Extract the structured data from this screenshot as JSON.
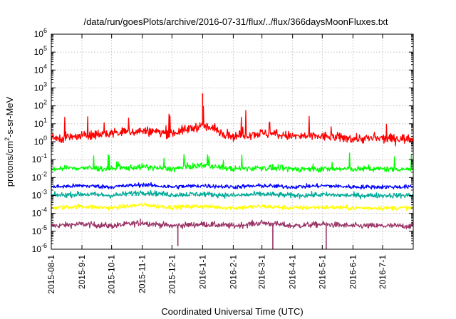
{
  "chart_data": {
    "type": "line",
    "title": "/data/run/goesPlots/archive/2016-07-31/flux/../flux/366daysMoonFluxes.txt",
    "xlabel": "Coordinated Universal Time (UTC)",
    "ylabel_parts": {
      "pre": "protons/cm",
      "sup": "2",
      "post": "-s-sr-MeV"
    },
    "y_scale": "log",
    "ylim": [
      1e-06,
      1000000.0
    ],
    "y_ticks": [
      {
        "base": "10",
        "exp": "-6",
        "value": 1e-06
      },
      {
        "base": "10",
        "exp": "-5",
        "value": 1e-05
      },
      {
        "base": "10",
        "exp": "-4",
        "value": 0.0001
      },
      {
        "base": "10",
        "exp": "-3",
        "value": 0.001
      },
      {
        "base": "10",
        "exp": "-2",
        "value": 0.01
      },
      {
        "base": "10",
        "exp": "-1",
        "value": 0.1
      },
      {
        "base": "10",
        "exp": "0",
        "value": 1
      },
      {
        "base": "10",
        "exp": "1",
        "value": 10
      },
      {
        "base": "10",
        "exp": "2",
        "value": 100
      },
      {
        "base": "10",
        "exp": "3",
        "value": 1000
      },
      {
        "base": "10",
        "exp": "4",
        "value": 10000
      },
      {
        "base": "10",
        "exp": "5",
        "value": 100000
      },
      {
        "base": "10",
        "exp": "6",
        "value": 1000000
      }
    ],
    "xlim": [
      "2015-08-01",
      "2016-08-01"
    ],
    "x_ticks": [
      "2015-08-1",
      "2015-9-1",
      "2015-10-1",
      "2015-11-1",
      "2015-12-1",
      "2016-1-1",
      "2016-2-1",
      "2016-3-1",
      "2016-4-1",
      "2016-5-1",
      "2016-6-1",
      "2016-7-1"
    ],
    "x_tick_dates": [
      "2015-08-01",
      "2015-09-01",
      "2015-10-01",
      "2015-11-01",
      "2015-12-01",
      "2016-01-01",
      "2016-02-01",
      "2016-03-01",
      "2016-04-01",
      "2016-05-01",
      "2016-06-01",
      "2016-07-01"
    ],
    "grid": true,
    "legend": "none",
    "series": [
      {
        "color": "#993366",
        "x": [
          "2015-08-01",
          "2015-09-01",
          "2015-10-01",
          "2015-11-01",
          "2015-12-01",
          "2016-01-01",
          "2016-02-01",
          "2016-03-01",
          "2016-04-01",
          "2016-05-01",
          "2016-06-01",
          "2016-07-01",
          "2016-08-01"
        ],
        "y": [
          2e-05,
          2.5e-05,
          2e-05,
          3e-05,
          2e-05,
          2.5e-05,
          2e-05,
          3e-05,
          2e-05,
          2.5e-05,
          2e-05,
          2e-05,
          2e-05
        ]
      },
      {
        "color": "#ffff00",
        "x": [
          "2015-08-01",
          "2015-09-01",
          "2015-10-01",
          "2015-11-01",
          "2015-12-01",
          "2016-01-01",
          "2016-02-01",
          "2016-03-01",
          "2016-04-01",
          "2016-05-01",
          "2016-06-01",
          "2016-07-01",
          "2016-08-01"
        ],
        "y": [
          0.0002,
          0.00025,
          0.0002,
          0.0003,
          0.00022,
          0.00025,
          0.0002,
          0.00025,
          0.0002,
          0.00022,
          0.0002,
          0.0002,
          0.0002
        ]
      },
      {
        "color": "#00aa99",
        "x": [
          "2015-08-01",
          "2015-09-01",
          "2015-10-01",
          "2015-11-01",
          "2015-12-01",
          "2016-01-01",
          "2016-02-01",
          "2016-03-01",
          "2016-04-01",
          "2016-05-01",
          "2016-06-01",
          "2016-07-01",
          "2016-08-01"
        ],
        "y": [
          0.001,
          0.0012,
          0.001,
          0.0015,
          0.0011,
          0.0012,
          0.001,
          0.0012,
          0.001,
          0.0011,
          0.001,
          0.001,
          0.001
        ]
      },
      {
        "color": "#0000ff",
        "x": [
          "2015-08-01",
          "2015-09-01",
          "2015-10-01",
          "2015-11-01",
          "2015-12-01",
          "2016-01-01",
          "2016-02-01",
          "2016-03-01",
          "2016-04-01",
          "2016-05-01",
          "2016-06-01",
          "2016-07-01",
          "2016-08-01"
        ],
        "y": [
          0.003,
          0.0035,
          0.003,
          0.004,
          0.003,
          0.0035,
          0.003,
          0.0035,
          0.003,
          0.0035,
          0.003,
          0.003,
          0.003
        ]
      },
      {
        "color": "#00ff00",
        "x": [
          "2015-08-01",
          "2015-09-01",
          "2015-10-01",
          "2015-11-01",
          "2015-12-01",
          "2016-01-01",
          "2016-02-01",
          "2016-03-01",
          "2016-04-01",
          "2016-05-01",
          "2016-06-01",
          "2016-07-01",
          "2016-08-01"
        ],
        "y": [
          0.03,
          0.035,
          0.03,
          0.04,
          0.03,
          0.05,
          0.03,
          0.035,
          0.03,
          0.03,
          0.03,
          0.03,
          0.03
        ]
      },
      {
        "color": "#ff0000",
        "x": [
          "2015-08-01",
          "2015-09-01",
          "2015-10-01",
          "2015-11-01",
          "2015-12-01",
          "2016-01-01",
          "2016-02-01",
          "2016-03-01",
          "2016-04-01",
          "2016-05-01",
          "2016-06-01",
          "2016-07-01",
          "2016-08-01"
        ],
        "y": [
          1.5,
          2,
          3,
          4,
          3,
          8,
          2,
          3,
          2,
          2,
          1.5,
          1.5,
          1.5
        ]
      }
    ],
    "annotations": [
      {
        "series_color": "#ff0000",
        "x": "2016-01-01",
        "y": 500
      },
      {
        "series_color": "#993366",
        "x": "2015-12-07",
        "y": 1.5e-06
      },
      {
        "series_color": "#993366",
        "x": "2016-03-12",
        "y": 1e-06
      },
      {
        "series_color": "#993366",
        "x": "2016-05-05",
        "y": 1e-06
      },
      {
        "series_color": "#993366",
        "x": "2015-10-30",
        "y": 5e-05
      }
    ]
  }
}
